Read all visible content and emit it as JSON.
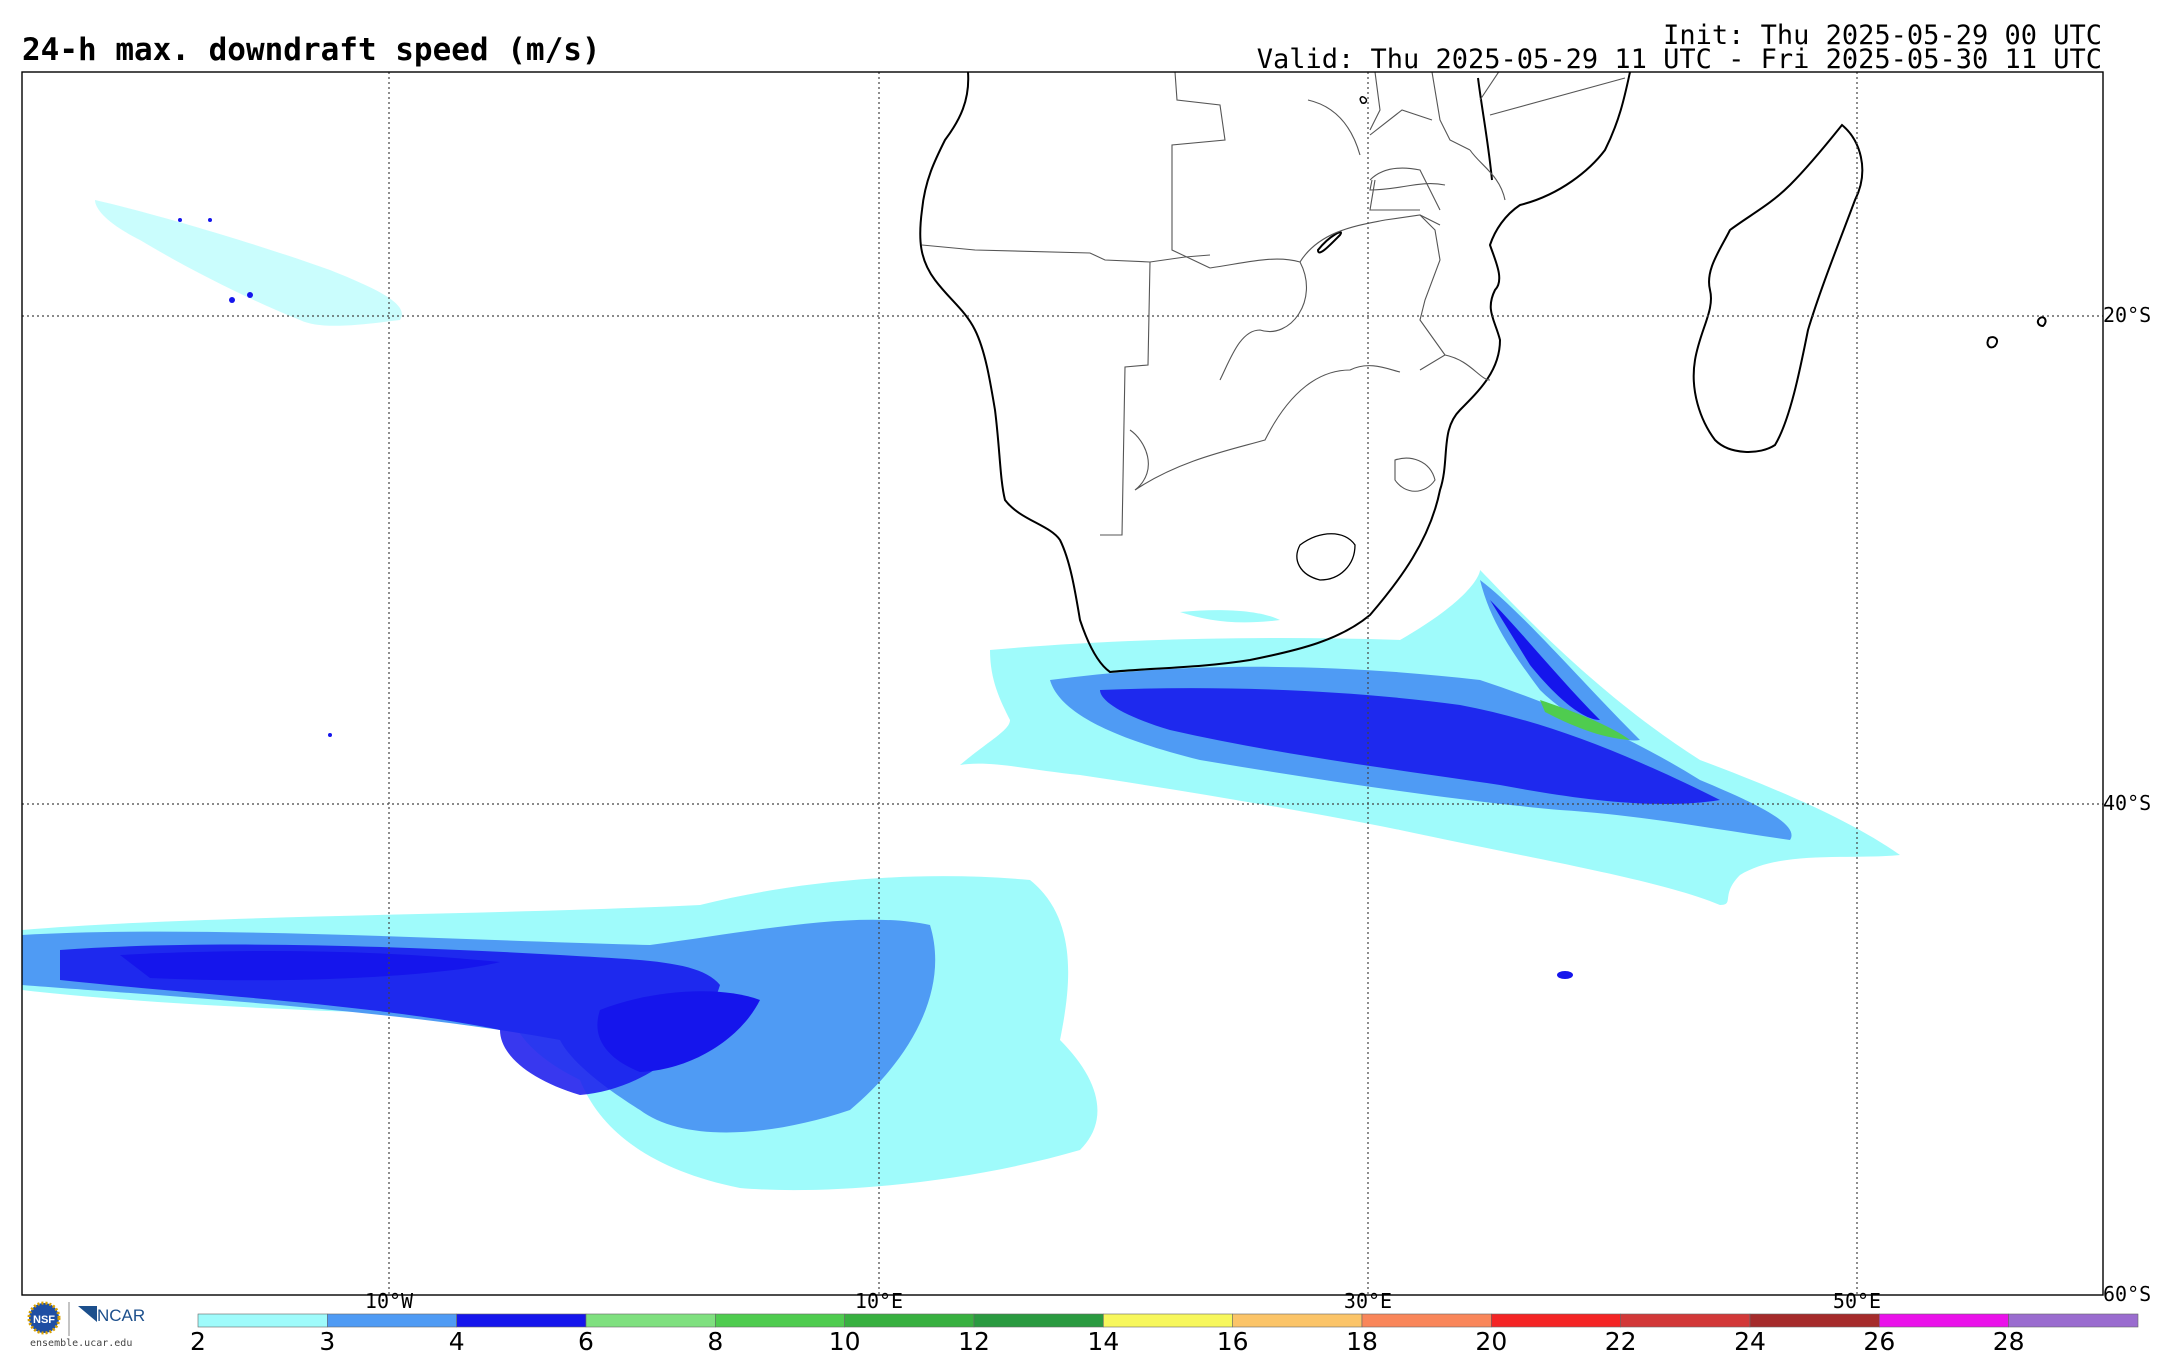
{
  "header": {
    "title": "24-h max. downdraft speed (m/s)",
    "init": "Init: Thu 2025-05-29 00 UTC",
    "valid": "Valid: Thu 2025-05-29 11 UTC - Fri 2025-05-30 11 UTC"
  },
  "axes": {
    "lat_labels": [
      "20°S",
      "40°S",
      "60°S"
    ],
    "lon_labels": [
      "10°W",
      "10°E",
      "30°E",
      "50°E"
    ]
  },
  "colorbar": {
    "ticks": [
      "2",
      "3",
      "4",
      "6",
      "8",
      "10",
      "12",
      "14",
      "16",
      "18",
      "20",
      "22",
      "24",
      "26",
      "28"
    ],
    "colors": [
      "#9ffbfb",
      "#4f9bf4",
      "#1515ec",
      "#7fe07f",
      "#4fcc4f",
      "#38b040",
      "#2a9a40",
      "#f7f75c",
      "#fbc468",
      "#f9865a",
      "#f42424",
      "#d23838",
      "#a52b2b",
      "#ea11ea",
      "#9a6ccf"
    ]
  },
  "logos": {
    "ncar": "NCAR",
    "credit": "ensemble.ucar.edu",
    "nsf_icon": "nsf-logo-icon"
  }
}
